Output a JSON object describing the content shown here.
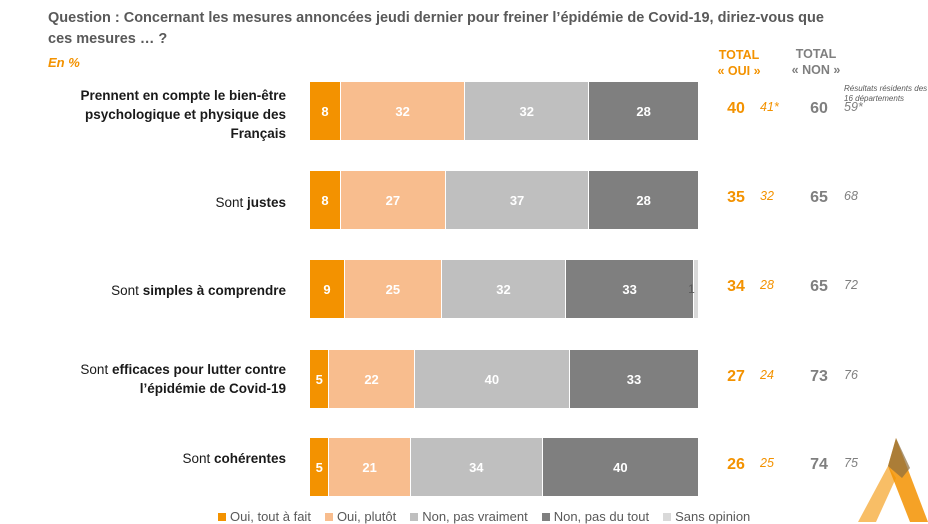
{
  "question": "Question : Concernant les mesures annoncées jeudi dernier pour freiner l’épidémie de Covid-19, diriez-vous que ces mesures … ?",
  "unit": "En %",
  "header": {
    "oui_line1": "TOTAL",
    "oui_line2": "« OUI »",
    "non_line1": "TOTAL",
    "non_line2": "« NON »",
    "note": "Résultats résidents des 16 départements"
  },
  "colors": {
    "tout_a_fait": "#f39200",
    "plutot": "#f8bd8e",
    "pas_vraiment": "#bfbfbf",
    "pas_du_tout": "#7f7f7f",
    "sans_opinion": "#d9d9d9"
  },
  "chart_data": {
    "type": "bar",
    "orientation": "horizontal-stacked",
    "unit": "%",
    "categories": [
      "Prennent en compte le bien-être psychologique et physique des Français",
      "Sont justes",
      "Sont simples à comprendre",
      "Sont efficaces pour lutter contre l’épidémie de Covid-19",
      "Sont cohérentes"
    ],
    "series": [
      {
        "name": "Oui, tout à fait",
        "values": [
          8,
          8,
          9,
          5,
          5
        ]
      },
      {
        "name": "Oui, plutôt",
        "values": [
          32,
          27,
          25,
          22,
          21
        ]
      },
      {
        "name": "Non, pas vraiment",
        "values": [
          32,
          37,
          32,
          40,
          34
        ]
      },
      {
        "name": "Non, pas du tout",
        "values": [
          28,
          28,
          33,
          33,
          40
        ]
      },
      {
        "name": "Sans opinion",
        "values": [
          0,
          0,
          1,
          0,
          0
        ]
      }
    ],
    "total_oui": [
      40,
      35,
      34,
      27,
      26
    ],
    "total_oui_residents": [
      "41*",
      "32",
      "28",
      "24",
      "25"
    ],
    "total_non": [
      60,
      65,
      65,
      73,
      74
    ],
    "total_non_residents": [
      "59*",
      "68",
      "72",
      "76",
      "75"
    ],
    "legend": [
      "Oui, tout à fait",
      "Oui, plutôt",
      "Non, pas vraiment",
      "Non, pas du tout",
      "Sans opinion"
    ],
    "legend_position": "bottom"
  },
  "rows": [
    {
      "pre": "",
      "bold": "Prennent en compte le bien-être psychologique et physique des Français",
      "post": ""
    },
    {
      "pre": "Sont ",
      "bold": "justes",
      "post": ""
    },
    {
      "pre": "Sont ",
      "bold": "simples à comprendre",
      "post": ""
    },
    {
      "pre": "Sont ",
      "bold": "efficaces pour lutter contre l’épidémie de Covid-19",
      "post": ""
    },
    {
      "pre": "Sont ",
      "bold": "cohérentes",
      "post": ""
    }
  ]
}
